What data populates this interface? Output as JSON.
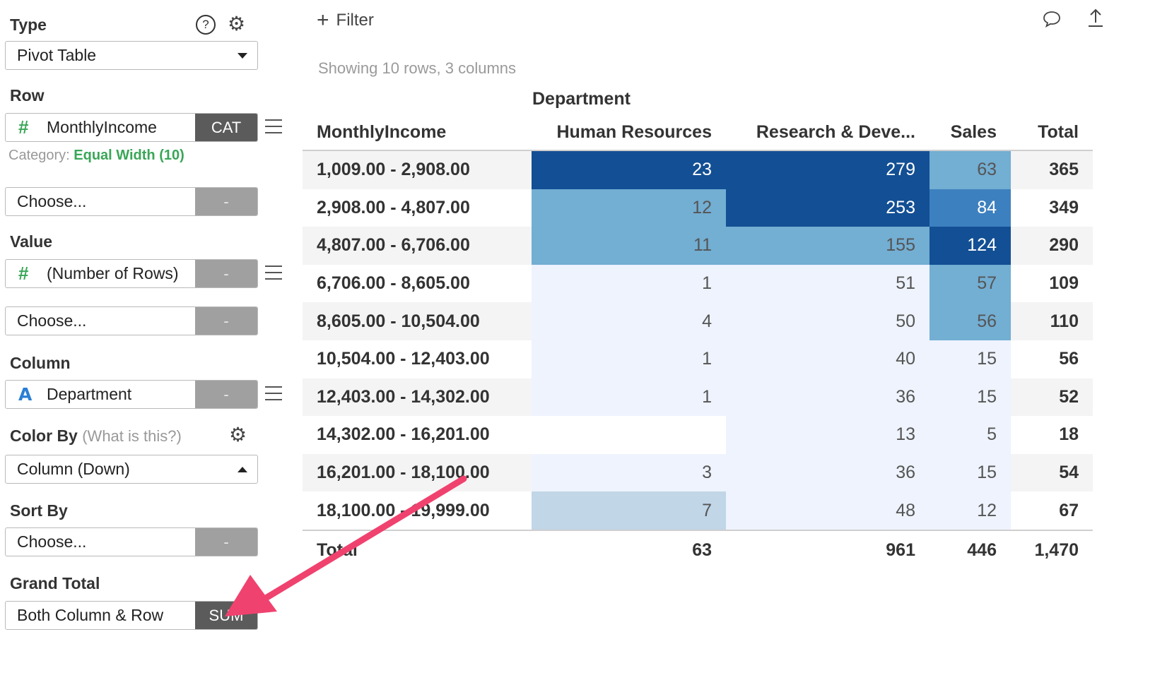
{
  "panel": {
    "type": {
      "label": "Type",
      "value": "Pivot Table",
      "help_icon": "question-icon",
      "settings_icon": "gear-icon"
    },
    "row": {
      "label": "Row",
      "field": "MonthlyIncome",
      "field_icon": "hash-icon",
      "button": "CAT",
      "category_prefix": "Category:",
      "category_value": "Equal Width (10)",
      "second_placeholder": "Choose...",
      "second_button": "-"
    },
    "value": {
      "label": "Value",
      "field": "(Number of Rows)",
      "field_icon": "hash-icon",
      "button": "-",
      "second_placeholder": "Choose...",
      "second_button": "-"
    },
    "column": {
      "label": "Column",
      "field": "Department",
      "field_icon": "alpha-icon",
      "button": "-"
    },
    "color_by": {
      "label": "Color By",
      "hint": "(What is this?)",
      "value": "Column (Down)"
    },
    "sort_by": {
      "label": "Sort By",
      "placeholder": "Choose...",
      "button": "-"
    },
    "grand_total": {
      "label": "Grand Total",
      "value": "Both Column & Row",
      "button": "SUM"
    }
  },
  "toolbar": {
    "filter_label": "Filter",
    "plus_glyph": "+",
    "comment_icon": "speech-bubble-icon",
    "export_icon": "upload-icon"
  },
  "status": "Showing 10 rows, 3 columns",
  "pivot": {
    "column_group": "Department",
    "headers": [
      "MonthlyIncome",
      "Human Resources",
      "Research & Deve...",
      "Sales",
      "Total"
    ],
    "rows": [
      {
        "label": "1,009.00 - 2,908.00",
        "cells": [
          "23",
          "279",
          "63"
        ],
        "total": "365"
      },
      {
        "label": "2,908.00 - 4,807.00",
        "cells": [
          "12",
          "253",
          "84"
        ],
        "total": "349"
      },
      {
        "label": "4,807.00 - 6,706.00",
        "cells": [
          "11",
          "155",
          "124"
        ],
        "total": "290"
      },
      {
        "label": "6,706.00 - 8,605.00",
        "cells": [
          "1",
          "51",
          "57"
        ],
        "total": "109"
      },
      {
        "label": "8,605.00 - 10,504.00",
        "cells": [
          "4",
          "50",
          "56"
        ],
        "total": "110"
      },
      {
        "label": "10,504.00 - 12,403.00",
        "cells": [
          "1",
          "40",
          "15"
        ],
        "total": "56"
      },
      {
        "label": "12,403.00 - 14,302.00",
        "cells": [
          "1",
          "36",
          "15"
        ],
        "total": "52"
      },
      {
        "label": "14,302.00 - 16,201.00",
        "cells": [
          "",
          "13",
          "5"
        ],
        "total": "18"
      },
      {
        "label": "16,201.00 - 18,100.00",
        "cells": [
          "3",
          "36",
          "15"
        ],
        "total": "54"
      },
      {
        "label": "18,100.00 - 19,999.00",
        "cells": [
          "7",
          "48",
          "12"
        ],
        "total": "67"
      }
    ],
    "total_row": {
      "label": "Total",
      "cells": [
        "63",
        "961",
        "446"
      ],
      "total": "1,470"
    },
    "heat_colors": {
      "Human Resources": [
        "#134f94",
        "#73aed3",
        "#73aed3",
        "#eef3fd",
        "#eef3fd",
        "#eef3fd",
        "#eef3fd",
        "#ffffff",
        "#eef3fd",
        "#c1d6e7"
      ],
      "Research & Deve...": [
        "#134f94",
        "#134f94",
        "#73aed3",
        "#eef3fd",
        "#eef3fd",
        "#eef3fd",
        "#eef3fd",
        "#eef3fd",
        "#eef3fd",
        "#eef3fd"
      ],
      "Sales": [
        "#73aed3",
        "#3d80bf",
        "#134f94",
        "#73aed3",
        "#73aed3",
        "#eef3fd",
        "#eef3fd",
        "#eef3fd",
        "#eef3fd",
        "#eef3fd"
      ]
    }
  },
  "annotation": {
    "arrow_color": "#f0426e"
  },
  "colors": {
    "category_green": "#3aa657",
    "button_gray": "#a0a0a0",
    "button_dark": "#5b5b5b"
  }
}
